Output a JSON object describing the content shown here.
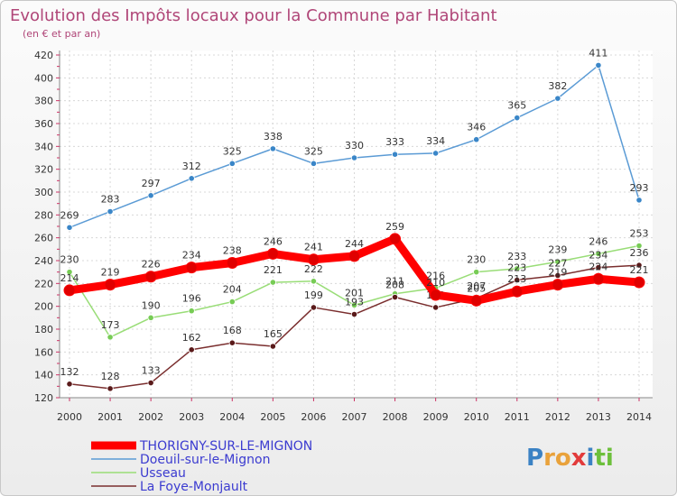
{
  "chart_data": {
    "type": "line",
    "title": "Evolution des Impôts locaux pour la Commune par Habitant",
    "subtitle": "(en € et par an)",
    "x": [
      "2000",
      "2001",
      "2002",
      "2003",
      "2004",
      "2005",
      "2006",
      "2007",
      "2008",
      "2009",
      "2010",
      "2011",
      "2012",
      "2013",
      "2014"
    ],
    "yticks": [
      120,
      140,
      160,
      180,
      200,
      220,
      240,
      260,
      280,
      300,
      320,
      340,
      360,
      380,
      400,
      420
    ],
    "ylim": [
      120,
      420
    ],
    "grid": true,
    "legend_position": "bottom-left",
    "series": [
      {
        "name": "THORIGNY-SUR-LE-MIGNON",
        "color": "#ff0000",
        "marker": "#e00000",
        "emphasis": true,
        "values": [
          214,
          219,
          226,
          234,
          238,
          246,
          241,
          244,
          259,
          210,
          205,
          213,
          219,
          224,
          221
        ]
      },
      {
        "name": "Doeuil-sur-le-Mignon",
        "color": "#5b9bd5",
        "marker": "#3a86c8",
        "emphasis": false,
        "values": [
          269,
          283,
          297,
          312,
          325,
          338,
          325,
          330,
          333,
          334,
          346,
          365,
          382,
          411,
          293
        ]
      },
      {
        "name": "Usseau",
        "color": "#99dd77",
        "marker": "#77cc55",
        "emphasis": false,
        "values": [
          230,
          173,
          190,
          196,
          204,
          221,
          222,
          201,
          211,
          216,
          230,
          233,
          239,
          246,
          253
        ]
      },
      {
        "name": "La Foye-Monjault",
        "color": "#7a2e2e",
        "marker": "#5a1a1a",
        "emphasis": false,
        "values": [
          132,
          128,
          133,
          162,
          168,
          165,
          199,
          193,
          208,
          199,
          207,
          223,
          227,
          234,
          236
        ]
      }
    ]
  },
  "brand": {
    "letters": [
      "P",
      "r",
      "o",
      "x",
      "i",
      "t",
      "i"
    ],
    "colors": [
      "#3b82c4",
      "#e9a23b",
      "#e9a23b",
      "#e23b3b",
      "#3b82c4",
      "#6cbf3b",
      "#6cbf3b"
    ]
  }
}
